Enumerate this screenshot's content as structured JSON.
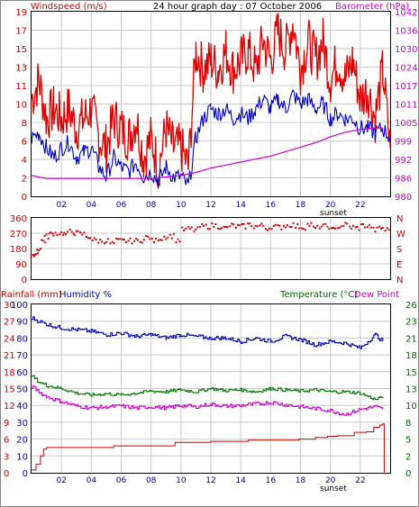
{
  "header": {
    "left_label": "Windspeed (m/s)",
    "title": "24 hour graph day : 07 October 2006",
    "right_label": "Barometer (hPa)"
  },
  "colors": {
    "wind": "#dd0000",
    "gust": "#dd0000",
    "avg_wind": "#0000bb",
    "barometer": "#cc00cc",
    "direction": "#cc0000",
    "humidity": "#0000aa",
    "temperature": "#007700",
    "dewpoint": "#cc00cc",
    "rainfall": "#cc0000",
    "axis_text_left": "#cc0000",
    "axis_text_right": "#cc00cc",
    "axis_text_temp": "#006600",
    "frame": "#000000",
    "time_labels": "#0000aa"
  },
  "time_labels": [
    "02",
    "04",
    "06",
    "08",
    "10",
    "12",
    "14",
    "16",
    "18",
    "20",
    "22"
  ],
  "sunset_label": "sunset",
  "panel1": {
    "wind_ticks": [
      "0",
      "2",
      "4",
      "6",
      "8",
      "10",
      "11",
      "13",
      "15",
      "17",
      "19"
    ],
    "baro_ticks": [
      "980",
      "986",
      "992",
      "999",
      "1005",
      "1011",
      "1017",
      "1024",
      "1030",
      "1036",
      "1042"
    ]
  },
  "panel2": {
    "dir_ticks": [
      "0",
      "90",
      "180",
      "270",
      "360"
    ],
    "compass_ticks": [
      "N",
      "E",
      "S",
      "W",
      "N"
    ]
  },
  "panel3": {
    "rain_label": "Rainfall (mm)",
    "humidity_label": "Humidity %",
    "temp_label": "Temperature (°C)",
    "dew_label": "Dew Point",
    "rain_ticks": [
      "0",
      "3",
      "6",
      "9",
      "12",
      "15",
      "18",
      "21",
      "24",
      "27",
      "30"
    ],
    "humidity_ticks": [
      "0",
      "10",
      "20",
      "30",
      "40",
      "50",
      "60",
      "70",
      "80",
      "90",
      "100"
    ],
    "temp_ticks": [
      "0",
      "2",
      "5",
      "8",
      "10",
      "13",
      "15",
      "18",
      "21",
      "23",
      "26"
    ]
  },
  "chart_data": [
    {
      "type": "line",
      "title": "24 hour graph day : 07 October 2006",
      "xlabel": "",
      "x_range_hours": [
        0,
        24
      ],
      "series": [
        {
          "name": "Windspeed (m/s) gust",
          "axis": "left",
          "ylim": [
            0,
            19
          ],
          "x": [
            0,
            0.5,
            1,
            1.5,
            2,
            2.5,
            3,
            3.5,
            4,
            4.5,
            5,
            5.5,
            6,
            6.5,
            7,
            7.5,
            8,
            8.5,
            9,
            9.5,
            10,
            10.5,
            11,
            11.5,
            12,
            12.5,
            13,
            13.5,
            14,
            14.5,
            15,
            15.5,
            16,
            16.5,
            17,
            17.5,
            18,
            18.5,
            19,
            19.5,
            20,
            20.5,
            21,
            21.5,
            22,
            22.5,
            23,
            23.5,
            24
          ],
          "y": [
            10,
            12,
            8,
            9,
            8,
            9,
            7,
            8,
            9,
            6,
            5,
            8,
            7,
            6,
            8,
            4,
            6,
            3,
            7,
            5,
            5,
            3,
            15,
            13,
            14,
            13,
            15,
            13,
            14,
            15,
            13,
            16,
            14,
            17,
            15,
            18,
            13,
            16,
            14,
            16,
            12,
            14,
            12,
            14,
            10,
            11,
            8,
            13,
            5
          ]
        },
        {
          "name": "Windspeed (m/s) average",
          "axis": "left",
          "ylim": [
            0,
            19
          ],
          "x": [
            0,
            0.5,
            1,
            1.5,
            2,
            2.5,
            3,
            3.5,
            4,
            4.5,
            5,
            5.5,
            6,
            6.5,
            7,
            7.5,
            8,
            8.5,
            9,
            9.5,
            10,
            10.5,
            11,
            11.5,
            12,
            12.5,
            13,
            13.5,
            14,
            14.5,
            15,
            15.5,
            16,
            16.5,
            17,
            17.5,
            18,
            18.5,
            19,
            19.5,
            20,
            20.5,
            21,
            21.5,
            22,
            22.5,
            23,
            23.5,
            24
          ],
          "y": [
            6,
            6.5,
            5,
            4,
            5,
            5.5,
            4,
            4.5,
            5,
            3,
            2,
            4,
            3,
            2.5,
            3.5,
            2,
            2.5,
            1.5,
            3,
            2,
            2,
            1,
            6,
            8,
            9,
            8.5,
            9,
            8,
            8.5,
            8,
            9,
            10,
            9,
            10,
            9,
            10.5,
            9.5,
            10,
            9,
            9.5,
            8,
            8.5,
            8,
            8,
            7,
            7,
            6.5,
            7,
            6
          ]
        },
        {
          "name": "Barometer (hPa)",
          "axis": "right",
          "ylim": [
            980,
            1042
          ],
          "x": [
            0,
            1,
            2,
            4,
            6,
            8,
            10,
            11,
            12,
            13,
            14,
            15,
            16,
            17,
            18,
            19,
            20,
            21,
            22,
            23,
            23.5
          ],
          "y": [
            987,
            986,
            986,
            986,
            986,
            986,
            987,
            988,
            989.5,
            990.5,
            991.5,
            992.5,
            993.5,
            995,
            996.5,
            998,
            1000,
            1001.5,
            1002.5,
            1003,
            1003
          ]
        }
      ]
    },
    {
      "type": "scatter",
      "title": "",
      "ylabel": "Wind direction",
      "ylim": [
        0,
        360
      ],
      "x": [
        0.1,
        0.3,
        0.5,
        0.8,
        1.0,
        1.3,
        1.6,
        2.0,
        2.3,
        2.7,
        3.0,
        3.4,
        3.8,
        4.2,
        4.6,
        5.0,
        5.4,
        5.8,
        6.2,
        6.6,
        7.0,
        7.4,
        7.8,
        8.2,
        8.6,
        9.0,
        9.4,
        9.8,
        10.2,
        10.6,
        11.0,
        11.4,
        11.8,
        12.2,
        12.6,
        13.0,
        13.4,
        13.8,
        14.2,
        14.6,
        15.0,
        15.4,
        15.8,
        16.2,
        16.6,
        17.0,
        17.4,
        17.8,
        18.2,
        18.6,
        19.0,
        19.4,
        19.8,
        20.2,
        20.6,
        21.0,
        21.4,
        21.8,
        22.2,
        22.6,
        23.0,
        23.4,
        23.8
      ],
      "y": [
        130,
        150,
        180,
        225,
        250,
        265,
        270,
        270,
        265,
        280,
        270,
        265,
        250,
        230,
        225,
        225,
        210,
        225,
        225,
        225,
        225,
        230,
        245,
        225,
        240,
        250,
        255,
        230,
        290,
        295,
        290,
        310,
        310,
        315,
        310,
        300,
        315,
        310,
        310,
        320,
        310,
        315,
        300,
        310,
        305,
        315,
        320,
        310,
        305,
        320,
        300,
        310,
        310,
        290,
        310,
        320,
        305,
        300,
        315,
        310,
        290,
        300,
        290
      ]
    },
    {
      "type": "line",
      "title": "",
      "series": [
        {
          "name": "Humidity %",
          "axis": "humidity",
          "ylim": [
            0,
            100
          ],
          "x": [
            0,
            1,
            2,
            3,
            4,
            5,
            6,
            7,
            8,
            9,
            10,
            11,
            12,
            13,
            14,
            15,
            16,
            17,
            18,
            19,
            20,
            21,
            22,
            23,
            23.5
          ],
          "y": [
            92,
            88,
            86,
            85,
            84,
            82,
            83,
            81,
            82,
            80,
            82,
            81,
            80,
            80,
            78,
            80,
            78,
            81,
            79,
            76,
            78,
            77,
            74,
            82,
            78
          ]
        },
        {
          "name": "Temperature (°C)",
          "axis": "temp",
          "ylim": [
            0,
            26
          ],
          "x": [
            0,
            0.5,
            1,
            2,
            3,
            4,
            5,
            6,
            7,
            8,
            9,
            10,
            11,
            12,
            13,
            14,
            15,
            16,
            17,
            18,
            19,
            20,
            21,
            22,
            23,
            23.5
          ],
          "y": [
            15,
            14,
            13.5,
            13,
            12.3,
            12,
            12.2,
            12,
            12.3,
            12.6,
            12.5,
            12.8,
            12.5,
            13,
            12.7,
            12.8,
            12.5,
            13,
            12.8,
            12.6,
            12.8,
            12.5,
            12.5,
            12.3,
            11.3,
            11.7
          ]
        },
        {
          "name": "Dew Point",
          "axis": "temp",
          "ylim": [
            0,
            26
          ],
          "x": [
            0,
            0.5,
            1,
            2,
            3,
            4,
            5,
            6,
            7,
            8,
            9,
            10,
            11,
            12,
            13,
            14,
            15,
            16,
            17,
            18,
            19,
            20,
            21,
            22,
            23,
            23.5
          ],
          "y": [
            13.3,
            12.5,
            11.7,
            11,
            10.3,
            10,
            10.2,
            10.3,
            10,
            10.2,
            10,
            10.4,
            10.2,
            10.6,
            10.3,
            10.4,
            10.6,
            10.9,
            10.5,
            10.2,
            9.9,
            9.6,
            9,
            9.8,
            10.2,
            9.8
          ]
        },
        {
          "name": "Rainfall (mm)",
          "axis": "rain",
          "ylim": [
            0,
            30
          ],
          "x": [
            0,
            0.3,
            0.6,
            0.8,
            1.0,
            5.0,
            5.5,
            9.0,
            9.6,
            12.0,
            14.5,
            17.5,
            17.9,
            19.0,
            19.8,
            20.5,
            21.6,
            22.4,
            22.9,
            23.3,
            23.5,
            23.6
          ],
          "y": [
            0.5,
            1.5,
            3,
            4.2,
            4.5,
            4.5,
            4.8,
            4.8,
            5.4,
            5.6,
            5.8,
            5.8,
            6.0,
            6.3,
            6.5,
            6.6,
            7.2,
            7.3,
            8.1,
            8.5,
            8.7,
            0
          ]
        }
      ]
    }
  ]
}
